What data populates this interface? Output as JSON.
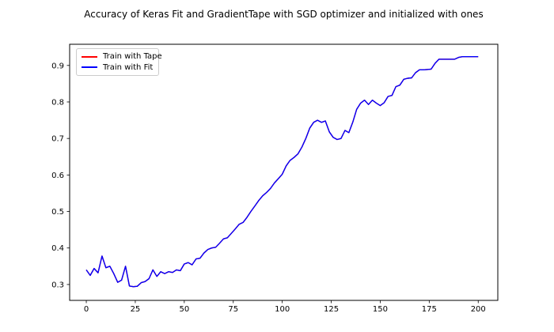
{
  "chart_data": {
    "type": "line",
    "title": "Accuracy of Keras Fit and GradientTape with SGD optimizer and initialized with ones",
    "xlabel": "",
    "ylabel": "",
    "grid": false,
    "legend_position": "upper left",
    "xlim": [
      -8.5,
      210
    ],
    "ylim": [
      0.2565,
      0.958
    ],
    "x_ticks": [
      0,
      25,
      50,
      75,
      100,
      125,
      150,
      175,
      200
    ],
    "y_ticks": [
      0.3,
      0.4,
      0.5,
      0.6,
      0.7,
      0.8,
      0.9
    ],
    "series": [
      {
        "name": "Train with Tape",
        "color": "#ff0000",
        "values_identical_to": "Train with Fit",
        "note": "line completely overlapped by Train with Fit in the plot; only legend entry visible"
      },
      {
        "name": "Train with Fit",
        "color": "#0000ff",
        "x": [
          0,
          2,
          4,
          6,
          8,
          10,
          12,
          14,
          16,
          18,
          20,
          22,
          24,
          26,
          28,
          30,
          32,
          34,
          36,
          38,
          40,
          42,
          44,
          46,
          48,
          50,
          52,
          54,
          56,
          58,
          60,
          62,
          64,
          66,
          68,
          70,
          72,
          74,
          76,
          78,
          80,
          82,
          84,
          86,
          88,
          90,
          92,
          94,
          96,
          98,
          100,
          102,
          104,
          106,
          108,
          110,
          112,
          114,
          116,
          118,
          120,
          122,
          124,
          126,
          128,
          130,
          132,
          134,
          136,
          138,
          140,
          142,
          144,
          146,
          148,
          150,
          152,
          154,
          156,
          158,
          160,
          162,
          164,
          166,
          168,
          170,
          172,
          174,
          176,
          178,
          180,
          182,
          184,
          186,
          188,
          190,
          192,
          194,
          196,
          198,
          200
        ],
        "y": [
          0.34,
          0.325,
          0.344,
          0.332,
          0.378,
          0.346,
          0.35,
          0.33,
          0.306,
          0.312,
          0.35,
          0.296,
          0.294,
          0.295,
          0.305,
          0.308,
          0.316,
          0.34,
          0.322,
          0.335,
          0.33,
          0.335,
          0.333,
          0.34,
          0.338,
          0.356,
          0.36,
          0.354,
          0.37,
          0.372,
          0.386,
          0.396,
          0.4,
          0.402,
          0.413,
          0.425,
          0.428,
          0.44,
          0.452,
          0.465,
          0.47,
          0.484,
          0.5,
          0.515,
          0.53,
          0.543,
          0.552,
          0.563,
          0.578,
          0.59,
          0.602,
          0.625,
          0.64,
          0.648,
          0.658,
          0.676,
          0.7,
          0.728,
          0.744,
          0.75,
          0.744,
          0.748,
          0.718,
          0.703,
          0.697,
          0.7,
          0.722,
          0.716,
          0.745,
          0.78,
          0.797,
          0.805,
          0.793,
          0.805,
          0.797,
          0.79,
          0.798,
          0.815,
          0.818,
          0.842,
          0.846,
          0.862,
          0.865,
          0.866,
          0.88,
          0.888,
          0.888,
          0.889,
          0.89,
          0.906,
          0.917,
          0.917,
          0.917,
          0.917,
          0.917,
          0.922,
          0.924,
          0.924,
          0.924,
          0.924,
          0.924
        ]
      }
    ]
  },
  "colors": {
    "background": "#ffffff",
    "axes_line": "#000000",
    "tick_label": "#000000",
    "legend_border": "#cccccc",
    "series_tape": "#ff0000",
    "series_fit": "#0000ff"
  }
}
